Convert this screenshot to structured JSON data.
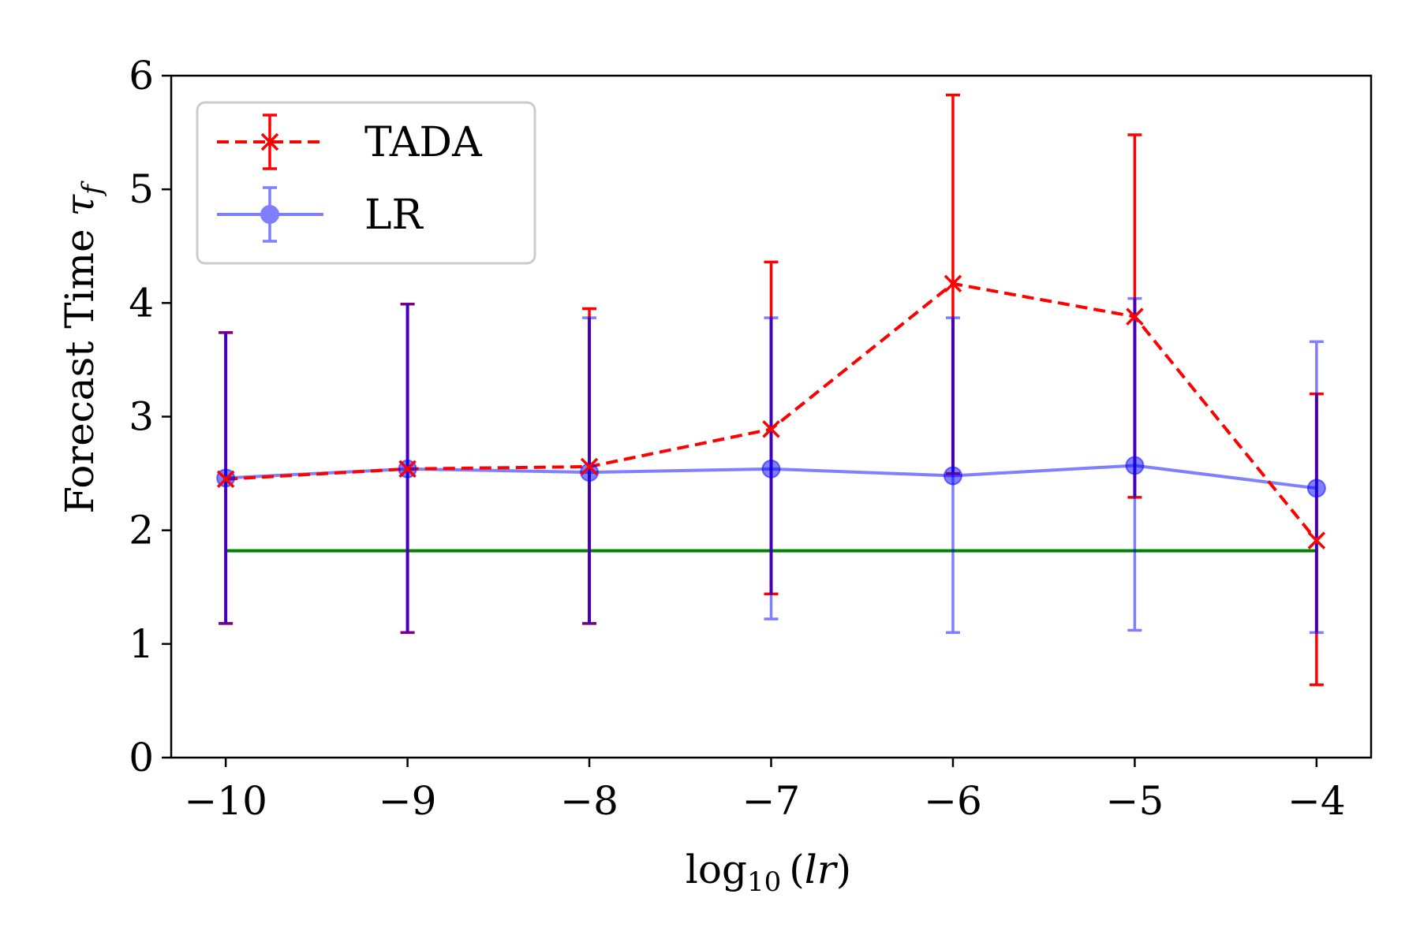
{
  "chart_data": {
    "type": "line",
    "title": "",
    "xlabel": "log10(lr)",
    "ylabel": "Forecast Time τ_f",
    "xlim": [
      -10.3,
      -3.7
    ],
    "ylim": [
      0,
      6
    ],
    "x": [
      -10,
      -9,
      -8,
      -7,
      -6,
      -5,
      -4
    ],
    "xticks": [
      -10,
      -9,
      -8,
      -7,
      -6,
      -5,
      -4
    ],
    "xtick_labels": [
      "−10",
      "−9",
      "−8",
      "−7",
      "−6",
      "−5",
      "−4"
    ],
    "yticks": [
      0,
      1,
      2,
      3,
      4,
      5,
      6
    ],
    "ytick_labels": [
      "0",
      "1",
      "2",
      "3",
      "4",
      "5",
      "6"
    ],
    "legend_position": "upper-left",
    "series": [
      {
        "name": "TADA",
        "color": "#ff0000",
        "style": "dashed",
        "marker": "x",
        "values": [
          2.45,
          2.54,
          2.56,
          2.89,
          4.17,
          3.88,
          1.91
        ],
        "err_low": [
          1.18,
          1.1,
          1.18,
          1.44,
          2.5,
          2.29,
          0.64
        ],
        "err_high": [
          3.74,
          3.99,
          3.95,
          4.36,
          5.83,
          5.48,
          3.2
        ]
      },
      {
        "name": "LR",
        "color": "#0000ff",
        "style": "solid",
        "marker": "o",
        "alpha": 0.5,
        "values": [
          2.46,
          2.54,
          2.51,
          2.54,
          2.48,
          2.57,
          2.37
        ],
        "err_low": [
          1.18,
          1.1,
          1.18,
          1.22,
          1.1,
          1.12,
          1.1
        ],
        "err_high": [
          3.74,
          3.99,
          3.87,
          3.87,
          3.87,
          4.04,
          3.66
        ]
      }
    ],
    "reference_line": {
      "value": 1.82,
      "color": "#008000",
      "x_from": -10,
      "x_to": -4
    },
    "overlap_color": "#800080"
  }
}
